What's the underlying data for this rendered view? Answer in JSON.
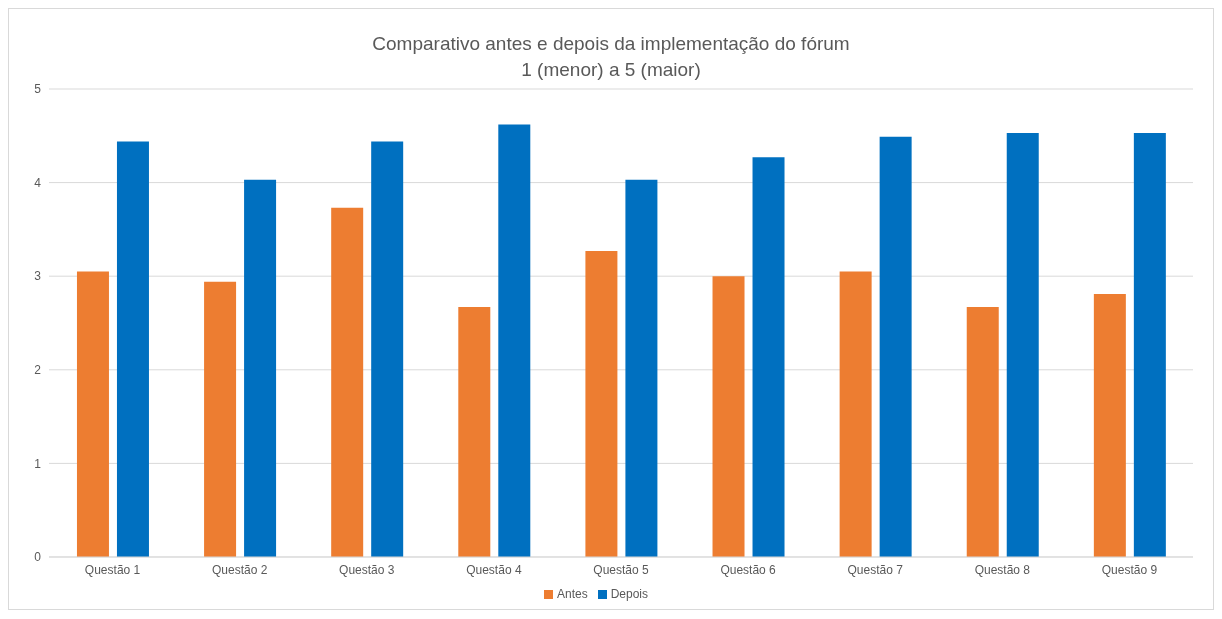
{
  "chart_data": {
    "type": "bar",
    "title": "Comparativo antes e depois da implementação do fórum",
    "subtitle": "1 (menor) a 5 (maior)",
    "categories": [
      "Questão 1",
      "Questão 2",
      "Questão 3",
      "Questão 4",
      "Questão 5",
      "Questão 6",
      "Questão 7",
      "Questão 8",
      "Questão 9"
    ],
    "series": [
      {
        "name": "Antes",
        "color": "#ed7d31",
        "values": [
          3.05,
          2.94,
          3.73,
          2.67,
          3.27,
          3.0,
          3.05,
          2.67,
          2.81
        ]
      },
      {
        "name": "Depois",
        "color": "#0070c0",
        "values": [
          4.44,
          4.03,
          4.44,
          4.62,
          4.03,
          4.27,
          4.49,
          4.53,
          4.53
        ]
      }
    ],
    "ylim": [
      0,
      5
    ],
    "yticks": [
      0,
      1,
      2,
      3,
      4,
      5
    ],
    "grid": "y",
    "legend": "bottom"
  }
}
